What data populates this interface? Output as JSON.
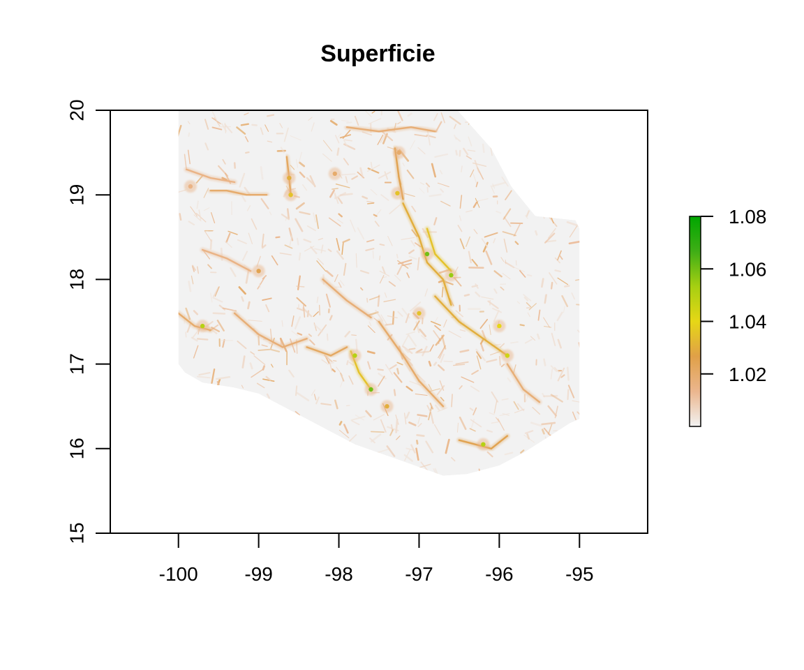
{
  "map": {
    "title": "Superficie",
    "x_axis": {
      "range": [
        -100.85,
        -94.15
      ],
      "ticks": [
        -100,
        -99,
        -98,
        -97,
        -96,
        -95
      ],
      "tick_labels": [
        "-100",
        "-99",
        "-98",
        "-97",
        "-96",
        "-95"
      ],
      "label": ""
    },
    "y_axis": {
      "range": [
        15,
        20
      ],
      "ticks": [
        15,
        16,
        17,
        18,
        19,
        20
      ],
      "tick_labels": [
        "15",
        "16",
        "17",
        "18",
        "19",
        "20"
      ],
      "label": ""
    },
    "legend": {
      "placement": "right",
      "range": [
        1.0,
        1.08
      ],
      "ticks": [
        1.02,
        1.04,
        1.06,
        1.08
      ],
      "tick_labels": [
        "1.02",
        "1.04",
        "1.06",
        "1.08"
      ],
      "colors": [
        "#f2f2f2",
        "#ebb68e",
        "#e0a048",
        "#e6d716",
        "#a6cf12",
        "#3fae16",
        "#00a600"
      ]
    },
    "raster": {
      "background_color": "#f2f2f2",
      "region_outline": [
        [
          -100.0,
          20.0
        ],
        [
          -96.52,
          20.0
        ],
        [
          -96.1,
          19.55
        ],
        [
          -95.85,
          19.1
        ],
        [
          -95.55,
          18.75
        ],
        [
          -95.05,
          18.7
        ],
        [
          -95.0,
          18.6
        ],
        [
          -95.0,
          16.35
        ],
        [
          -95.12,
          16.3
        ],
        [
          -95.45,
          16.1
        ],
        [
          -95.7,
          15.95
        ],
        [
          -96.0,
          15.8
        ],
        [
          -96.4,
          15.7
        ],
        [
          -96.7,
          15.68
        ],
        [
          -97.2,
          15.85
        ],
        [
          -97.8,
          16.05
        ],
        [
          -98.2,
          16.25
        ],
        [
          -98.6,
          16.45
        ],
        [
          -99.0,
          16.65
        ],
        [
          -99.3,
          16.72
        ],
        [
          -99.7,
          16.78
        ],
        [
          -99.92,
          16.9
        ],
        [
          -100.0,
          17.0
        ]
      ],
      "features": [
        {
          "kind": "ridge",
          "level": 1.02,
          "path": [
            [
              -99.6,
              19.05
            ],
            [
              -99.4,
              19.05
            ],
            [
              -99.15,
              19.0
            ],
            [
              -98.9,
              19.0
            ]
          ]
        },
        {
          "kind": "ridge",
          "level": 1.015,
          "path": [
            [
              -99.9,
              19.3
            ],
            [
              -99.6,
              19.2
            ],
            [
              -99.3,
              19.15
            ]
          ]
        },
        {
          "kind": "ridge",
          "level": 1.022,
          "path": [
            [
              -98.65,
              19.45
            ],
            [
              -98.62,
              19.2
            ],
            [
              -98.6,
              19.0
            ]
          ]
        },
        {
          "kind": "ridge",
          "level": 1.025,
          "path": [
            [
              -97.3,
              19.55
            ],
            [
              -97.25,
              19.2
            ],
            [
              -97.2,
              18.95
            ]
          ]
        },
        {
          "kind": "ridge",
          "level": 1.018,
          "path": [
            [
              -97.9,
              19.8
            ],
            [
              -97.5,
              19.75
            ],
            [
              -97.1,
              19.8
            ],
            [
              -96.8,
              19.75
            ]
          ]
        },
        {
          "kind": "ridge",
          "level": 1.03,
          "path": [
            [
              -97.2,
              18.9
            ],
            [
              -97.0,
              18.5
            ],
            [
              -96.9,
              18.2
            ],
            [
              -96.7,
              18.0
            ],
            [
              -96.6,
              17.7
            ]
          ]
        },
        {
          "kind": "ridge",
          "level": 1.035,
          "path": [
            [
              -96.9,
              18.6
            ],
            [
              -96.8,
              18.3
            ],
            [
              -96.6,
              18.1
            ]
          ]
        },
        {
          "kind": "ridge",
          "level": 1.03,
          "path": [
            [
              -96.8,
              17.8
            ],
            [
              -96.5,
              17.5
            ],
            [
              -96.2,
              17.3
            ],
            [
              -95.9,
              17.1
            ]
          ]
        },
        {
          "kind": "ridge",
          "level": 1.035,
          "path": [
            [
              -97.85,
              17.15
            ],
            [
              -97.75,
              16.9
            ],
            [
              -97.6,
              16.7
            ]
          ]
        },
        {
          "kind": "ridge",
          "level": 1.022,
          "path": [
            [
              -98.4,
              17.2
            ],
            [
              -98.1,
              17.1
            ],
            [
              -97.9,
              17.2
            ]
          ]
        },
        {
          "kind": "ridge",
          "level": 1.025,
          "path": [
            [
              -96.5,
              16.1
            ],
            [
              -96.3,
              16.05
            ],
            [
              -96.1,
              16.0
            ],
            [
              -95.9,
              16.15
            ]
          ]
        },
        {
          "kind": "ridge",
          "level": 1.02,
          "path": [
            [
              -100.0,
              17.6
            ],
            [
              -99.8,
              17.45
            ],
            [
              -99.6,
              17.4
            ]
          ]
        },
        {
          "kind": "ridge",
          "level": 1.018,
          "path": [
            [
              -99.3,
              17.6
            ],
            [
              -99.0,
              17.35
            ],
            [
              -98.7,
              17.2
            ],
            [
              -98.4,
              17.3
            ]
          ]
        },
        {
          "kind": "ridge",
          "level": 1.018,
          "path": [
            [
              -98.2,
              18.0
            ],
            [
              -97.9,
              17.75
            ],
            [
              -97.6,
              17.55
            ]
          ]
        },
        {
          "kind": "ridge",
          "level": 1.015,
          "path": [
            [
              -99.7,
              18.35
            ],
            [
              -99.4,
              18.25
            ],
            [
              -99.1,
              18.1
            ]
          ]
        },
        {
          "kind": "ridge",
          "level": 1.02,
          "path": [
            [
              -97.5,
              17.5
            ],
            [
              -97.2,
              17.1
            ],
            [
              -97.0,
              16.8
            ],
            [
              -96.7,
              16.5
            ]
          ]
        },
        {
          "kind": "ridge",
          "level": 1.018,
          "path": [
            [
              -95.9,
              17.0
            ],
            [
              -95.7,
              16.7
            ],
            [
              -95.5,
              16.55
            ]
          ]
        },
        {
          "kind": "peak",
          "level": 1.03,
          "at": [
            -98.62,
            19.2
          ]
        },
        {
          "kind": "peak",
          "level": 1.035,
          "at": [
            -98.6,
            19.0
          ]
        },
        {
          "kind": "peak",
          "level": 1.02,
          "at": [
            -98.05,
            19.25
          ]
        },
        {
          "kind": "peak",
          "level": 1.035,
          "at": [
            -97.27,
            19.02
          ]
        },
        {
          "kind": "peak",
          "level": 1.02,
          "at": [
            -97.25,
            19.5
          ]
        },
        {
          "kind": "peak",
          "level": 1.015,
          "at": [
            -99.85,
            19.1
          ]
        },
        {
          "kind": "peak",
          "level": 1.06,
          "at": [
            -96.9,
            18.3
          ]
        },
        {
          "kind": "peak",
          "level": 1.055,
          "at": [
            -96.6,
            18.05
          ]
        },
        {
          "kind": "peak",
          "level": 1.05,
          "at": [
            -99.7,
            17.45
          ]
        },
        {
          "kind": "peak",
          "level": 1.06,
          "at": [
            -97.6,
            16.7
          ]
        },
        {
          "kind": "peak",
          "level": 1.05,
          "at": [
            -97.8,
            17.1
          ]
        },
        {
          "kind": "peak",
          "level": 1.05,
          "at": [
            -96.2,
            16.05
          ]
        },
        {
          "kind": "peak",
          "level": 1.045,
          "at": [
            -95.9,
            17.1
          ]
        },
        {
          "kind": "peak",
          "level": 1.04,
          "at": [
            -96.0,
            17.45
          ]
        },
        {
          "kind": "peak",
          "level": 1.035,
          "at": [
            -97.0,
            17.6
          ]
        },
        {
          "kind": "peak",
          "level": 1.03,
          "at": [
            -97.4,
            16.5
          ]
        },
        {
          "kind": "peak",
          "level": 1.025,
          "at": [
            -99.0,
            18.1
          ]
        }
      ]
    }
  }
}
